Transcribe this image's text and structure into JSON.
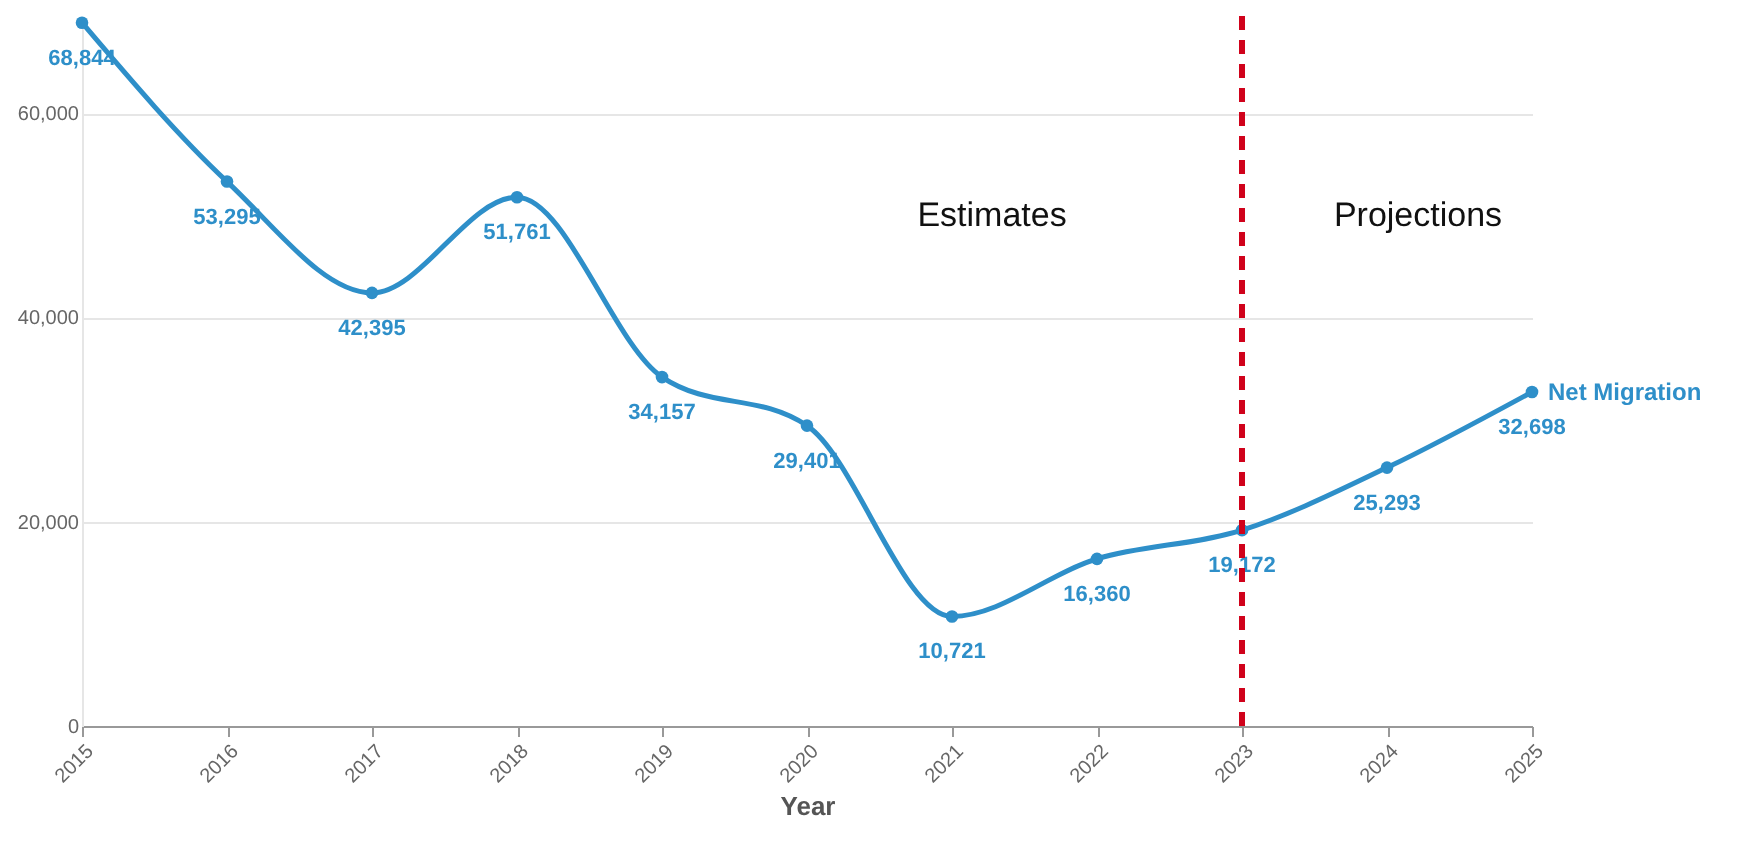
{
  "chart_data": {
    "type": "line",
    "xlabel": "Year",
    "categories": [
      "2015",
      "2016",
      "2017",
      "2018",
      "2019",
      "2020",
      "2021",
      "2022",
      "2023",
      "2024",
      "2025"
    ],
    "series": [
      {
        "name": "Net Migration",
        "color": "#2e8fc9",
        "values": [
          68844,
          53295,
          42395,
          51761,
          34157,
          29401,
          10721,
          16360,
          19172,
          25293,
          32698
        ],
        "value_labels": [
          "68,844",
          "53,295",
          "42,395",
          "51,761",
          "34,157",
          "29,401",
          "10,721",
          "16,360",
          "19,172",
          "25,293",
          "32,698"
        ]
      }
    ],
    "ylim": [
      0,
      69500
    ],
    "yticks": [
      0,
      {
        "value": 20000,
        "label": "20,000"
      },
      {
        "value": 40000,
        "label": "40,000"
      },
      {
        "value": 60000,
        "label": "60,000"
      }
    ],
    "grid": "y",
    "marker": "circle",
    "ref_lines": [
      {
        "axis": "x",
        "value": "2023",
        "color": "#d0021b",
        "line_style": "dashed"
      }
    ],
    "annotations": [
      "Estimates",
      "Projections"
    ]
  }
}
